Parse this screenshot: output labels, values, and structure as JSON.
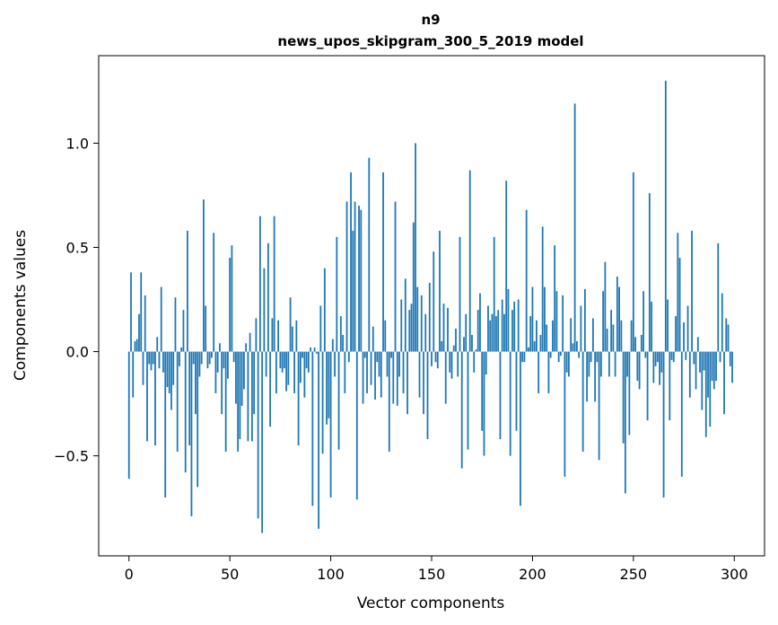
{
  "chart_data": {
    "type": "bar",
    "title": "n9",
    "subtitle": "news_upos_skipgram_300_5_2019 model",
    "xlabel": "Vector components",
    "ylabel": "Components values",
    "xlim": [
      -15,
      315
    ],
    "ylim": [
      -0.98,
      1.42
    ],
    "xticks": [
      0,
      50,
      100,
      150,
      200,
      250,
      300
    ],
    "yticks": [
      -0.5,
      0.0,
      0.5,
      1.0
    ],
    "ytick_labels": [
      "−0.5",
      "0.0",
      "0.5",
      "1.0"
    ],
    "bar_color": "#1f77b4",
    "grid": false,
    "legend": "none",
    "values": [
      -0.61,
      0.38,
      -0.22,
      0.05,
      0.06,
      0.18,
      0.38,
      -0.16,
      0.27,
      -0.43,
      -0.06,
      -0.09,
      -0.06,
      -0.45,
      0.07,
      -0.08,
      0.31,
      -0.1,
      -0.7,
      -0.17,
      -0.2,
      -0.28,
      -0.16,
      0.26,
      -0.48,
      -0.07,
      0.02,
      0.2,
      -0.58,
      0.58,
      -0.45,
      -0.79,
      -0.06,
      -0.3,
      -0.65,
      -0.12,
      -0.06,
      0.73,
      0.22,
      -0.08,
      -0.06,
      -0.03,
      0.57,
      -0.2,
      -0.1,
      0.04,
      -0.3,
      -0.08,
      -0.48,
      -0.13,
      0.45,
      0.51,
      -0.05,
      -0.25,
      -0.48,
      -0.42,
      -0.26,
      -0.18,
      0.04,
      -0.43,
      0.09,
      -0.43,
      -0.3,
      0.16,
      -0.8,
      0.65,
      -0.87,
      0.4,
      -0.12,
      0.52,
      -0.36,
      0.16,
      0.65,
      -0.2,
      0.15,
      -0.08,
      -0.1,
      -0.08,
      -0.19,
      -0.16,
      0.26,
      0.12,
      -0.2,
      0.15,
      -0.45,
      -0.15,
      -0.03,
      -0.22,
      -0.08,
      -0.1,
      0.02,
      -0.74,
      0.02,
      -0.01,
      -0.85,
      0.22,
      -0.49,
      0.4,
      -0.35,
      -0.32,
      -0.7,
      0.06,
      -0.12,
      0.55,
      -0.47,
      0.17,
      0.08,
      -0.2,
      0.72,
      -0.05,
      0.86,
      0.58,
      0.72,
      -0.71,
      0.7,
      0.68,
      -0.25,
      -0.03,
      -0.2,
      0.93,
      -0.16,
      0.12,
      -0.23,
      -0.05,
      -0.12,
      -0.22,
      0.86,
      0.15,
      -0.12,
      -0.48,
      -0.03,
      -0.25,
      0.72,
      -0.26,
      -0.12,
      0.25,
      -0.2,
      0.35,
      -0.3,
      0.2,
      0.23,
      0.62,
      1.0,
      0.31,
      -0.22,
      0.27,
      -0.3,
      0.18,
      -0.42,
      0.33,
      -0.07,
      0.48,
      -0.05,
      -0.08,
      0.58,
      0.05,
      0.23,
      -0.25,
      0.21,
      -0.1,
      -0.13,
      0.03,
      0.11,
      -0.12,
      0.55,
      -0.56,
      0.07,
      0.18,
      -0.47,
      0.87,
      0.08,
      -0.1,
      0.01,
      0.2,
      0.28,
      -0.38,
      -0.5,
      -0.11,
      0.22,
      0.15,
      0.18,
      0.55,
      0.17,
      0.2,
      -0.42,
      0.25,
      0.18,
      0.82,
      0.3,
      -0.5,
      0.2,
      0.24,
      -0.38,
      0.25,
      -0.74,
      -0.05,
      -0.05,
      0.68,
      0.02,
      0.17,
      0.31,
      0.05,
      0.15,
      -0.2,
      0.08,
      0.6,
      0.31,
      0.13,
      -0.2,
      -0.03,
      0.15,
      0.51,
      0.29,
      -0.05,
      -0.02,
      0.27,
      -0.6,
      -0.1,
      -0.12,
      0.16,
      0.04,
      1.19,
      0.05,
      -0.03,
      0.22,
      -0.48,
      0.3,
      -0.24,
      -0.12,
      -0.05,
      0.16,
      -0.24,
      -0.05,
      -0.52,
      -0.12,
      0.29,
      0.43,
      0.11,
      -0.12,
      0.2,
      0.13,
      -0.12,
      0.36,
      0.31,
      0.15,
      -0.44,
      -0.68,
      -0.12,
      -0.4,
      0.15,
      0.86,
      0.07,
      -0.14,
      -0.18,
      0.08,
      0.29,
      -0.03,
      -0.33,
      0.76,
      0.24,
      -0.15,
      -0.07,
      -0.05,
      -0.16,
      -0.1,
      -0.7,
      1.3,
      0.25,
      -0.33,
      -0.04,
      -0.05,
      0.17,
      0.57,
      0.45,
      -0.6,
      0.14,
      -0.04,
      0.22,
      -0.22,
      0.58,
      -0.06,
      -0.18,
      0.07,
      -0.1,
      -0.28,
      -0.09,
      -0.41,
      -0.22,
      -0.36,
      -0.14,
      -0.18,
      -0.14,
      0.52,
      -0.05,
      0.28,
      -0.3,
      0.16,
      0.13,
      -0.07,
      -0.15
    ]
  }
}
